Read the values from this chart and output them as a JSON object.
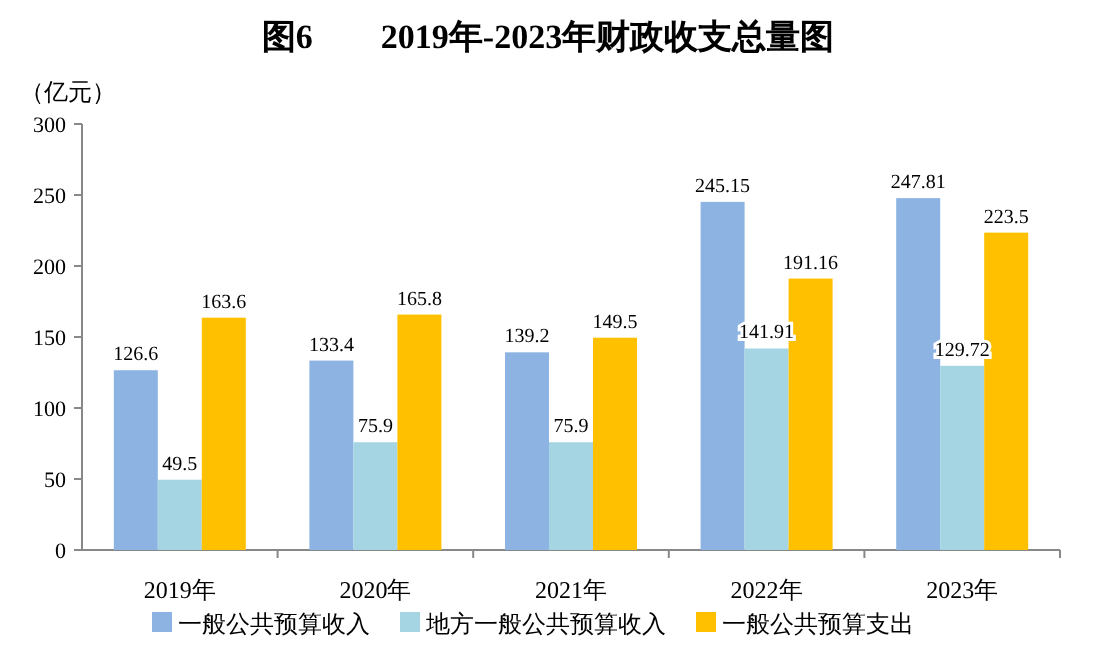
{
  "chart_data": {
    "type": "bar",
    "title": "图6　　2019年-2023年财政收支总量图",
    "ylabel": "（亿元）",
    "categories": [
      "2019年",
      "2020年",
      "2021年",
      "2022年",
      "2023年"
    ],
    "series": [
      {
        "name": "一般公共预算收入",
        "color": "#8db3e2",
        "values": [
          126.6,
          133.4,
          139.2,
          245.15,
          247.81
        ]
      },
      {
        "name": "地方一般公共预算收入",
        "color": "#a5d5e3",
        "values": [
          49.5,
          75.9,
          75.9,
          141.91,
          129.72
        ]
      },
      {
        "name": "一般公共预算支出",
        "color": "#ffc000",
        "values": [
          163.6,
          165.8,
          149.5,
          191.16,
          223.5
        ]
      }
    ],
    "ylim": [
      0,
      300
    ],
    "yticks": [
      0,
      50,
      100,
      150,
      200,
      250,
      300
    ],
    "grid": false,
    "legend": "bottom",
    "data_labels": true
  }
}
